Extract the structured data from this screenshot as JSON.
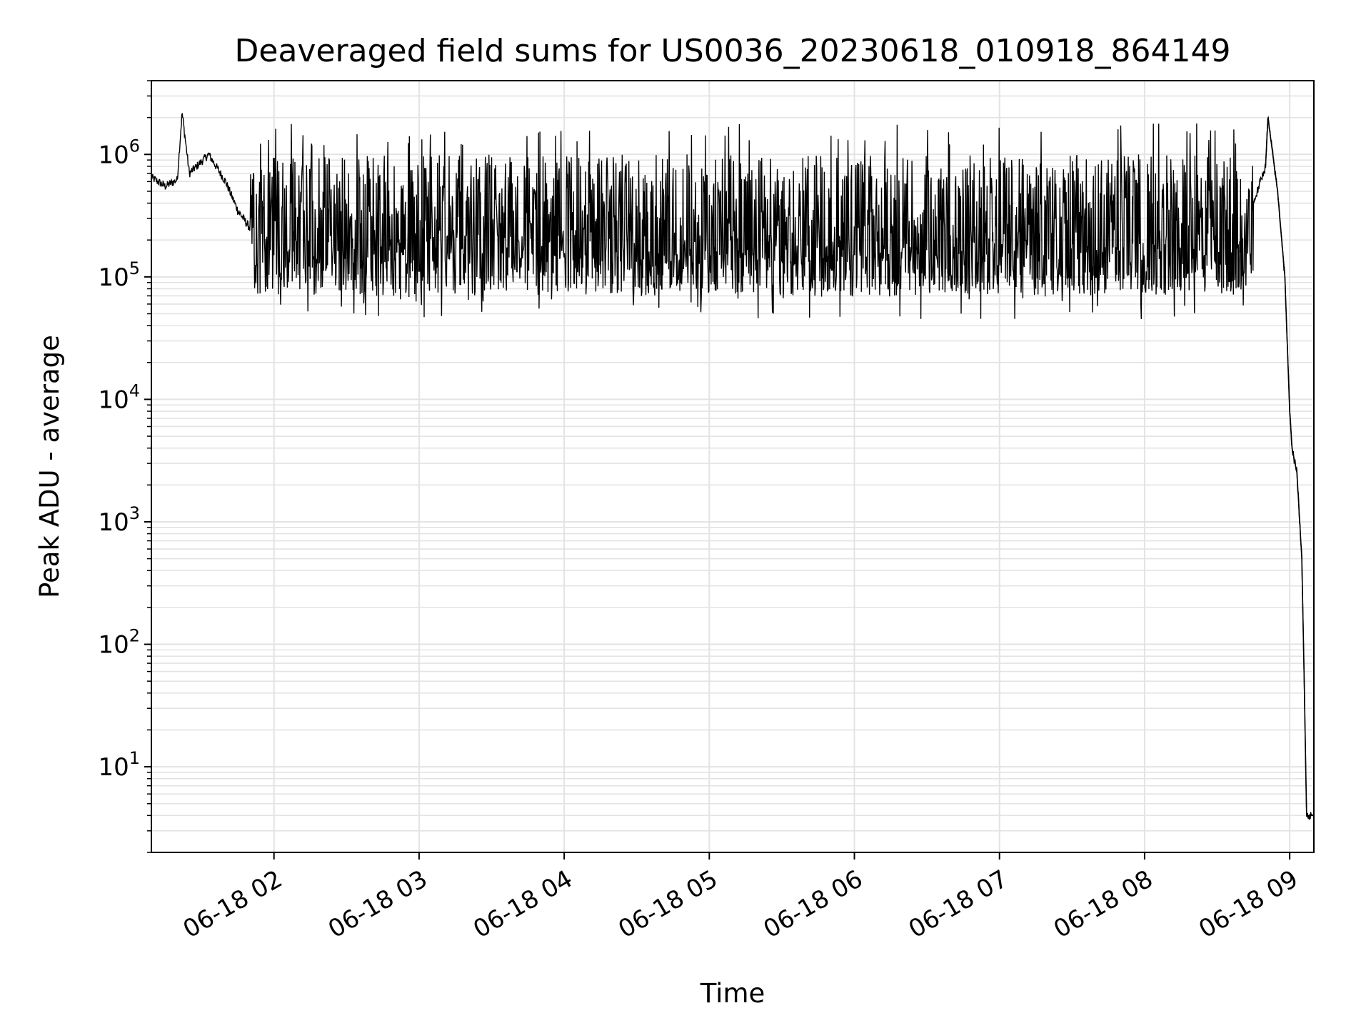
{
  "chart_data": {
    "type": "line",
    "title": "Deaveraged field sums for US0036_20230618_010918_864149",
    "xlabel": "Time",
    "ylabel": "Peak ADU - average",
    "x_axis": {
      "kind": "time",
      "range": [
        "2023-06-18T01:09:18",
        "2023-06-18T09:10:00"
      ],
      "ticks": [
        "2023-06-18T02:00",
        "2023-06-18T03:00",
        "2023-06-18T04:00",
        "2023-06-18T05:00",
        "2023-06-18T06:00",
        "2023-06-18T07:00",
        "2023-06-18T08:00",
        "2023-06-18T09:00"
      ],
      "tick_labels": [
        "06-18 02",
        "06-18 03",
        "06-18 04",
        "06-18 05",
        "06-18 06",
        "06-18 07",
        "06-18 08",
        "06-18 09"
      ],
      "tick_rotation_deg": 30
    },
    "y_axis": {
      "scale": "log",
      "range": [
        2,
        4000000
      ],
      "major_ticks": [
        10,
        100,
        1000,
        10000,
        100000,
        1000000
      ],
      "tick_label_base": "10",
      "tick_label_exponents": [
        "1",
        "2",
        "3",
        "4",
        "5",
        "6"
      ]
    },
    "grid": true,
    "legend": "none",
    "series_color": "#000000",
    "grid_color": "#e3e3e3",
    "series": [
      {
        "description_points": [
          [
            "2023-06-18T01:09:18",
            650000
          ],
          [
            "2023-06-18T01:15",
            550000
          ],
          [
            "2023-06-18T01:20",
            620000
          ],
          [
            "2023-06-18T01:25",
            700000
          ],
          [
            "2023-06-18T01:22",
            2200000
          ],
          [
            "2023-06-18T01:33",
            1000000
          ],
          [
            "2023-06-18T01:40",
            600000
          ],
          [
            "2023-06-18T01:45",
            350000
          ],
          [
            "2023-06-18T01:55",
            180000
          ],
          [
            "2023-06-18T02:05",
            100000
          ],
          [
            "2023-06-18T02:30",
            130000
          ],
          [
            "2023-06-18T03:00",
            160000
          ],
          [
            "2023-06-18T04:00",
            100000
          ],
          [
            "2023-06-18T05:00",
            130000
          ],
          [
            "2023-06-18T06:00",
            130000
          ],
          [
            "2023-06-18T07:00",
            130000
          ],
          [
            "2023-06-18T08:00",
            110000
          ],
          [
            "2023-06-18T08:20",
            110000
          ],
          [
            "2023-06-18T08:35",
            200000
          ],
          [
            "2023-06-18T08:45",
            400000
          ],
          [
            "2023-06-18T08:50",
            800000
          ],
          [
            "2023-06-18T08:51",
            2000000
          ],
          [
            "2023-06-18T08:55",
            500000
          ],
          [
            "2023-06-18T08:58",
            100000
          ],
          [
            "2023-06-18T09:00",
            8000
          ],
          [
            "2023-06-18T09:01",
            4000
          ],
          [
            "2023-06-18T09:03",
            2500
          ],
          [
            "2023-06-18T09:05",
            500
          ],
          [
            "2023-06-18T09:06",
            50
          ],
          [
            "2023-06-18T09:07",
            4
          ],
          [
            "2023-06-18T09:10",
            4
          ]
        ],
        "noisy_band": {
          "from": "2023-06-18T01:50",
          "to": "2023-06-18T08:45",
          "upper_typical": 1000000,
          "lower_typical": 70000,
          "lower_extreme": 45000,
          "upper_extreme": 1800000
        }
      }
    ]
  }
}
